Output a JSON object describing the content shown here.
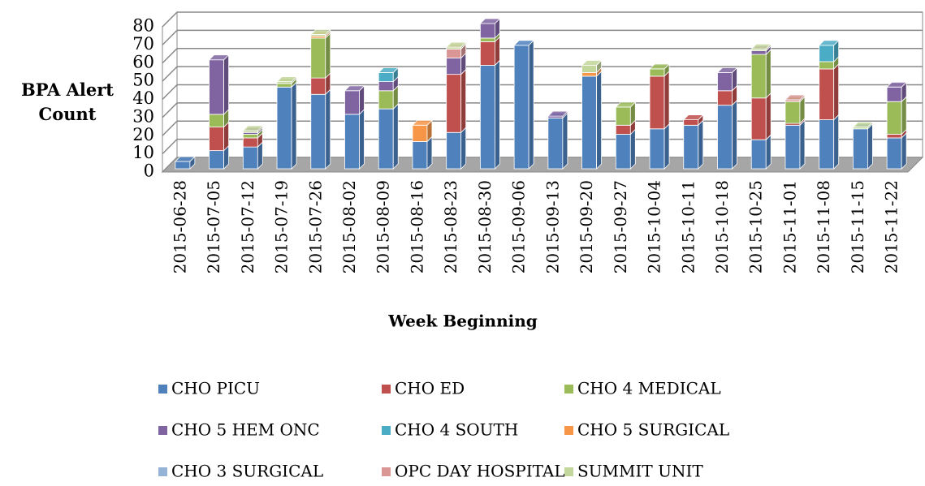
{
  "chart_data": {
    "type": "bar3d_stacked",
    "y_label": "BPA Alert Count",
    "x_label": "Week Beginning",
    "categories": [
      "2015-06-28",
      "2015-07-05",
      "2015-07-12",
      "2015-07-19",
      "2015-07-26",
      "2015-08-02",
      "2015-08-09",
      "2015-08-16",
      "2015-08-23",
      "2015-08-30",
      "2015-09-06",
      "2015-09-13",
      "2015-09-20",
      "2015-09-27",
      "2015-10-04",
      "2015-10-11",
      "2015-10-18",
      "2015-10-25",
      "2015-11-01",
      "2015-11-08",
      "2015-11-15",
      "2015-11-22"
    ],
    "series": [
      {
        "name": "CHO PICU",
        "color": "#4f81bd",
        "values": [
          4,
          10,
          12,
          45,
          41,
          30,
          33,
          15,
          20,
          57,
          68,
          28,
          51,
          19,
          22,
          24,
          35,
          16,
          24,
          27,
          22,
          17
        ]
      },
      {
        "name": "CHO ED",
        "color": "#c0504d",
        "values": [
          0,
          13,
          5,
          0,
          9,
          0,
          0,
          0,
          32,
          13,
          0,
          0,
          0,
          5,
          29,
          3,
          8,
          23,
          1,
          28,
          0,
          2
        ]
      },
      {
        "name": "CHO 4 MEDICAL",
        "color": "#9bbb59",
        "values": [
          0,
          7,
          2,
          2,
          22,
          0,
          10,
          0,
          0,
          2,
          0,
          0,
          0,
          10,
          4,
          0,
          0,
          24,
          12,
          4,
          0,
          18
        ]
      },
      {
        "name": "CHO 5 HEM ONC",
        "color": "#8064a2",
        "values": [
          0,
          30,
          1,
          0,
          0,
          13,
          5,
          0,
          9,
          8,
          0,
          1,
          0,
          0,
          0,
          0,
          10,
          2,
          0,
          0,
          0,
          8
        ]
      },
      {
        "name": "CHO 4 SOUTH",
        "color": "#4bacc6",
        "values": [
          0,
          0,
          0,
          0,
          0,
          0,
          5,
          0,
          0,
          0,
          0,
          0,
          0,
          0,
          0,
          0,
          0,
          0,
          0,
          9,
          0,
          0
        ]
      },
      {
        "name": "CHO 5 SURGICAL",
        "color": "#f79646",
        "values": [
          0,
          0,
          0,
          0,
          1,
          0,
          0,
          9,
          0,
          0,
          0,
          0,
          2,
          0,
          0,
          0,
          0,
          0,
          0,
          0,
          0,
          0
        ]
      },
      {
        "name": "CHO 3 SURGICAL",
        "color": "#95b3d7",
        "values": [
          0,
          0,
          0,
          0,
          0,
          0,
          0,
          0,
          0,
          0,
          0,
          0,
          0,
          0,
          0,
          0,
          0,
          0,
          0,
          0,
          0,
          0
        ]
      },
      {
        "name": "OPC DAY HOSPITAL",
        "color": "#d99694",
        "values": [
          0,
          0,
          0,
          0,
          0,
          0,
          0,
          0,
          5,
          0,
          0,
          0,
          0,
          0,
          0,
          0,
          0,
          0,
          1,
          0,
          0,
          0
        ]
      },
      {
        "name": "SUMMIT UNIT",
        "color": "#c3d69b",
        "values": [
          0,
          0,
          1,
          1,
          1,
          0,
          0,
          0,
          1,
          0,
          0,
          0,
          4,
          0,
          0,
          0,
          0,
          1,
          0,
          0,
          1,
          0
        ]
      }
    ],
    "ylim": [
      0,
      80
    ],
    "yticks": [
      0,
      10,
      20,
      30,
      40,
      50,
      60,
      70,
      80
    ],
    "grid": true
  }
}
